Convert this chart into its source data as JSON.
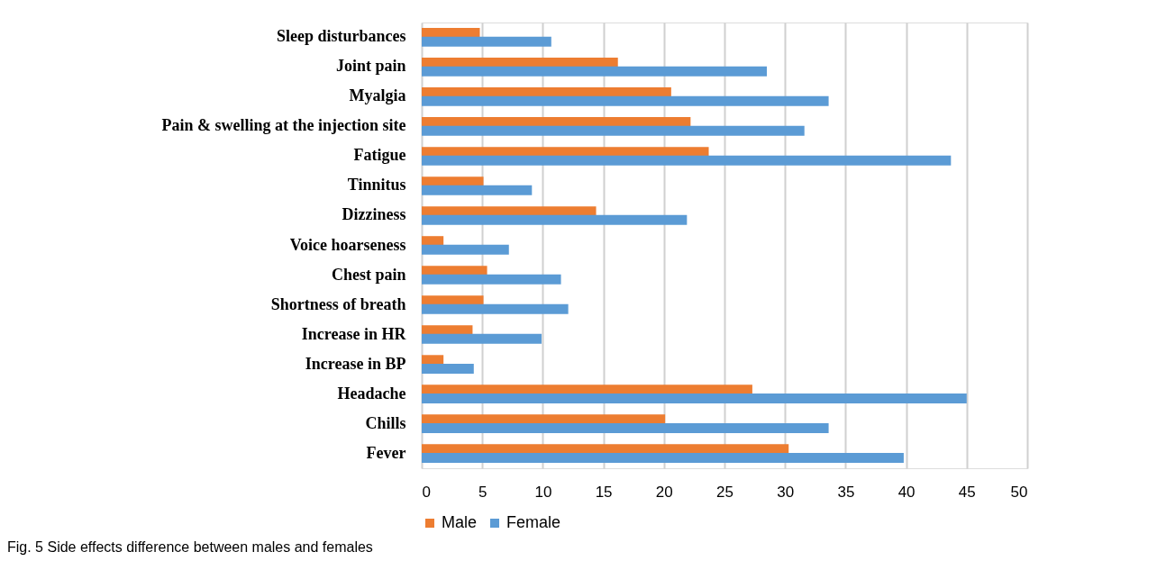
{
  "chart_data": {
    "type": "bar",
    "orientation": "horizontal",
    "categories": [
      "Sleep disturbances",
      "Joint pain",
      "Myalgia",
      "Pain & swelling at the injection site",
      "Fatigue",
      "Tinnitus",
      "Dizziness",
      "Voice hoarseness",
      "Chest pain",
      "Shortness of breath",
      "Increase in HR",
      "Increase in BP",
      "Headache",
      "Chills",
      "Fever"
    ],
    "series": [
      {
        "name": "Male",
        "color": "#ed7d31",
        "values": [
          4.8,
          16.2,
          20.6,
          22.2,
          23.7,
          5.1,
          14.4,
          1.8,
          5.4,
          5.1,
          4.2,
          1.8,
          27.3,
          20.1,
          30.3
        ]
      },
      {
        "name": "Female",
        "color": "#5b9bd5",
        "values": [
          10.7,
          28.5,
          33.6,
          31.6,
          43.7,
          9.1,
          21.9,
          7.2,
          11.5,
          12.1,
          9.9,
          4.3,
          45.0,
          33.6,
          39.8
        ]
      }
    ],
    "xlim": [
      0,
      50
    ],
    "xticks": [
      0,
      5,
      10,
      15,
      20,
      25,
      30,
      35,
      40,
      45,
      50
    ],
    "grid": "x",
    "legend": "bottom",
    "annotations": [
      "Fig. 5 Side effects difference between males and females"
    ]
  }
}
